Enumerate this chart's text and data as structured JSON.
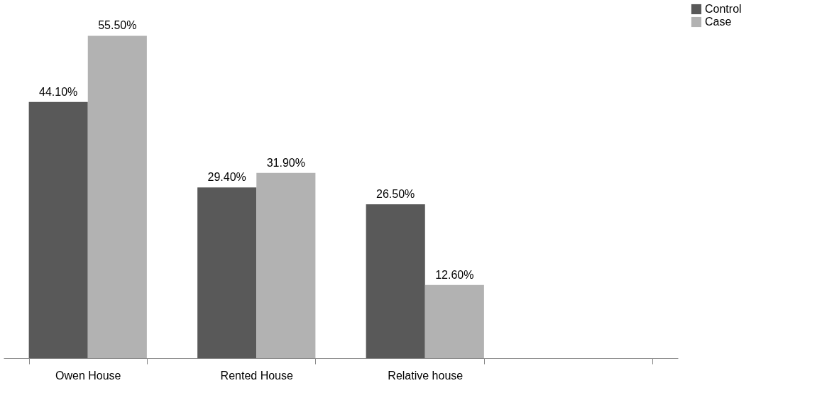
{
  "chart_data": {
    "type": "bar",
    "categories": [
      "Owen House",
      "Rented House",
      "Relative house",
      null
    ],
    "series": [
      {
        "name": "Control",
        "color": "#595959",
        "values": [
          44.1,
          29.4,
          26.5,
          null
        ],
        "value_labels": [
          "44.10%",
          "29.40%",
          "26.50%",
          null
        ]
      },
      {
        "name": "Case",
        "color": "#b2b2b2",
        "values": [
          55.5,
          31.9,
          12.6,
          null
        ],
        "value_labels": [
          "55.50%",
          "31.90%",
          "12.60%",
          null
        ]
      }
    ],
    "legend": "right",
    "grid": false
  }
}
